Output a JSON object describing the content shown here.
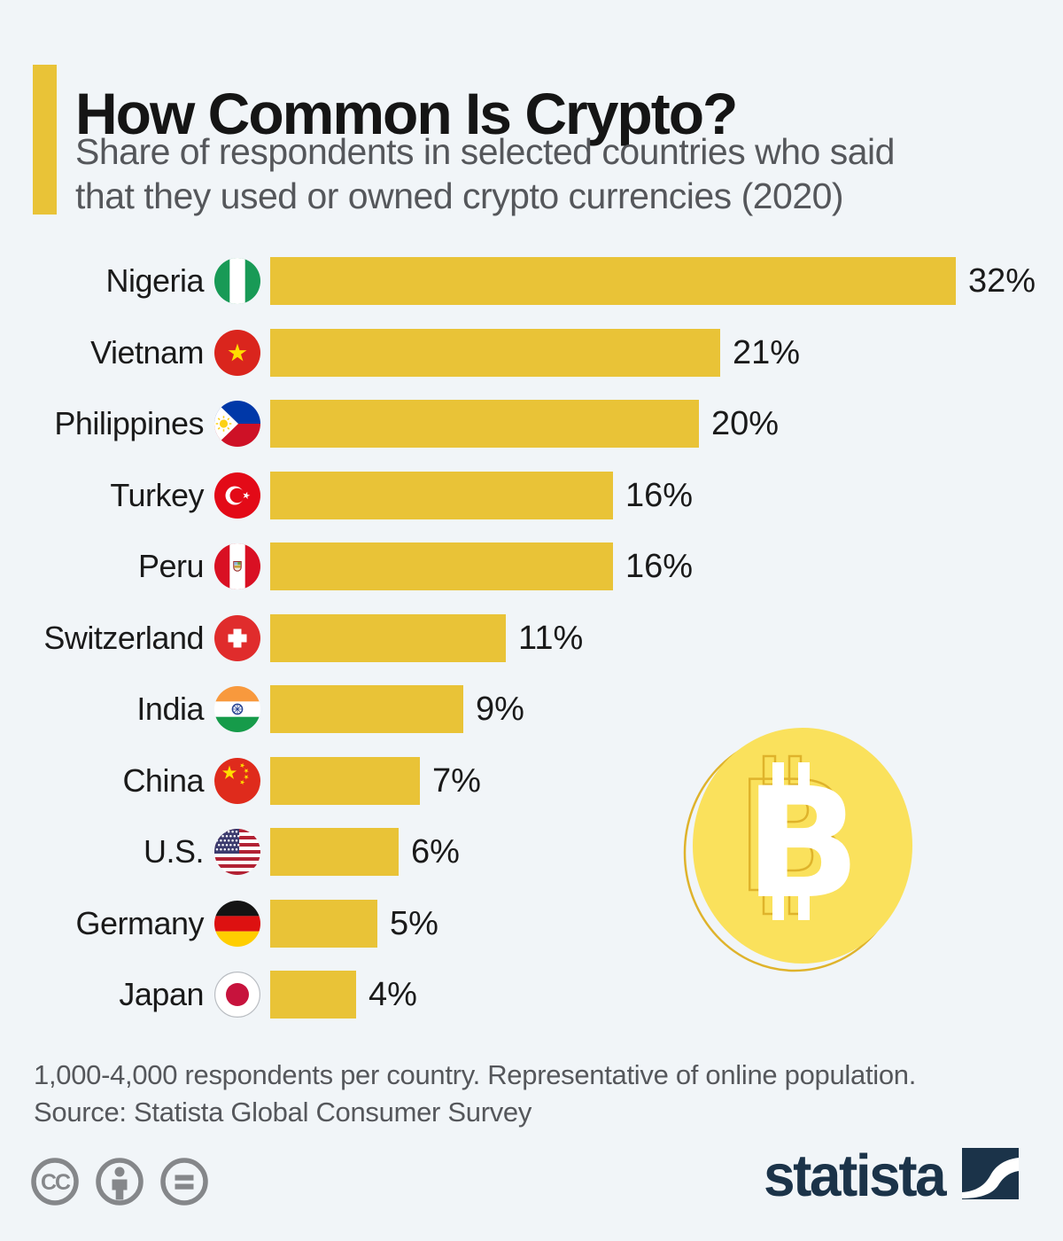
{
  "header": {
    "title": "How Common Is Crypto?",
    "subtitle_line1": "Share of respondents in selected countries who said",
    "subtitle_line2": "that they used or owned crypto currencies (2020)"
  },
  "chart_data": {
    "type": "bar",
    "orientation": "horizontal",
    "title": "How Common Is Crypto?",
    "subtitle": "Share of respondents in selected countries who said that they used or owned crypto currencies (2020)",
    "unit": "%",
    "categories": [
      "Nigeria",
      "Vietnam",
      "Philippines",
      "Turkey",
      "Peru",
      "Switzerland",
      "India",
      "China",
      "U.S.",
      "Germany",
      "Japan"
    ],
    "values": [
      32,
      21,
      20,
      16,
      16,
      11,
      9,
      7,
      6,
      5,
      4
    ],
    "value_labels": [
      "32%",
      "21%",
      "20%",
      "16%",
      "16%",
      "11%",
      "9%",
      "7%",
      "6%",
      "5%",
      "4%"
    ],
    "flags": [
      "nigeria",
      "vietnam",
      "philippines",
      "turkey",
      "peru",
      "switzerland",
      "india",
      "china",
      "us",
      "germany",
      "japan"
    ],
    "bar_color": "#e9c337",
    "background_color": "#f1f5f8",
    "xlim": [
      0,
      34
    ],
    "grid": false,
    "legend": false
  },
  "decor": {
    "coin_icon": "bitcoin-coin-icon",
    "coin_fill": "#fae15c",
    "coin_line": "#dfb32b"
  },
  "footer": {
    "note_line1": "1,000-4,000 respondents per country. Representative of online population.",
    "note_line2": "Source: Statista Global Consumer Survey",
    "license_icons": [
      "cc-icon",
      "attribution-icon",
      "no-derivatives-icon"
    ],
    "brand": "statista"
  },
  "colors": {
    "accent_yellow": "#e9c337",
    "title_text": "#151515",
    "subtitle_text": "#55575b",
    "label_text": "#1a1a1a",
    "brand_navy": "#1b3349",
    "license_gray": "#85878a"
  }
}
